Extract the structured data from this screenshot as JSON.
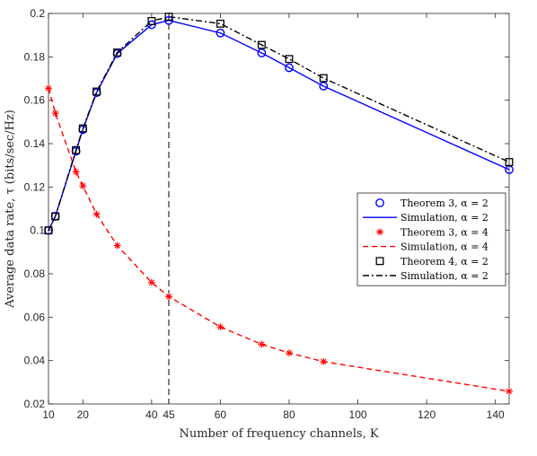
{
  "chart_data": {
    "type": "line",
    "xlabel": "Number of frequency channels, K",
    "ylabel": "Average data rate, τ (bits/sec/Hz)",
    "xlim": [
      10,
      144
    ],
    "ylim": [
      0.02,
      0.2
    ],
    "xticks": [
      10,
      20,
      40,
      45,
      60,
      80,
      100,
      120,
      140
    ],
    "yticks": [
      0.02,
      0.04,
      0.06,
      0.08,
      0.1,
      0.12,
      0.14,
      0.16,
      0.18,
      0.2
    ],
    "xtick_labels": [
      "10",
      "20",
      "40",
      "45",
      "60",
      "80",
      "100",
      "120",
      "140"
    ],
    "ytick_labels": [
      "0.02",
      "0.04",
      "0.06",
      "0.08",
      "0.1",
      "0.12",
      "0.14",
      "0.16",
      "0.18",
      "0.2"
    ],
    "vline_x": 45,
    "grid": false,
    "legend_position": "right",
    "series": [
      {
        "name": "Theorem 3, α = 2",
        "style": "marker-circle",
        "color": "#0000ff",
        "x": [
          10,
          12,
          18,
          20,
          24,
          30,
          40,
          45,
          60,
          72,
          80,
          90,
          144
        ],
        "y": [
          0.1,
          0.1065,
          0.1365,
          0.1465,
          0.1635,
          0.1815,
          0.1948,
          0.1968,
          0.191,
          0.1818,
          0.175,
          0.1665,
          0.128
        ]
      },
      {
        "name": "Simulation, α = 2",
        "style": "line-solid",
        "color": "#0000ff",
        "x": [
          10,
          12,
          18,
          20,
          24,
          30,
          40,
          45,
          60,
          72,
          80,
          90,
          144
        ],
        "y": [
          0.1,
          0.1065,
          0.1365,
          0.1465,
          0.1635,
          0.1815,
          0.1948,
          0.1968,
          0.191,
          0.1818,
          0.175,
          0.1665,
          0.128
        ]
      },
      {
        "name": "Theorem 3, α = 4",
        "style": "marker-star",
        "color": "#ff0000",
        "x": [
          10,
          12,
          18,
          20,
          24,
          30,
          40,
          45,
          60,
          72,
          80,
          90,
          144
        ],
        "y": [
          0.1655,
          0.154,
          0.127,
          0.1205,
          0.1075,
          0.093,
          0.076,
          0.0695,
          0.0555,
          0.0475,
          0.0435,
          0.0395,
          0.0258
        ]
      },
      {
        "name": "Simulation, α = 4",
        "style": "line-dashed",
        "color": "#ff0000",
        "x": [
          10,
          12,
          18,
          20,
          24,
          30,
          40,
          45,
          60,
          72,
          80,
          90,
          144
        ],
        "y": [
          0.1655,
          0.154,
          0.127,
          0.1205,
          0.1075,
          0.093,
          0.076,
          0.0695,
          0.0555,
          0.0475,
          0.0435,
          0.0395,
          0.0258
        ]
      },
      {
        "name": "Theorem 4, α = 2",
        "style": "marker-square",
        "color": "#000000",
        "x": [
          10,
          12,
          18,
          20,
          24,
          30,
          40,
          45,
          60,
          72,
          80,
          90,
          144
        ],
        "y": [
          0.1,
          0.1065,
          0.137,
          0.147,
          0.164,
          0.182,
          0.1965,
          0.1985,
          0.1953,
          0.1855,
          0.179,
          0.1702,
          0.1315
        ]
      },
      {
        "name": "Simulation, α = 2",
        "style": "line-dashdot",
        "color": "#000000",
        "x": [
          10,
          12,
          18,
          20,
          24,
          30,
          40,
          45,
          60,
          72,
          80,
          90,
          144
        ],
        "y": [
          0.1,
          0.1065,
          0.137,
          0.147,
          0.164,
          0.182,
          0.1965,
          0.1985,
          0.1953,
          0.1855,
          0.179,
          0.1702,
          0.1315
        ]
      }
    ]
  }
}
